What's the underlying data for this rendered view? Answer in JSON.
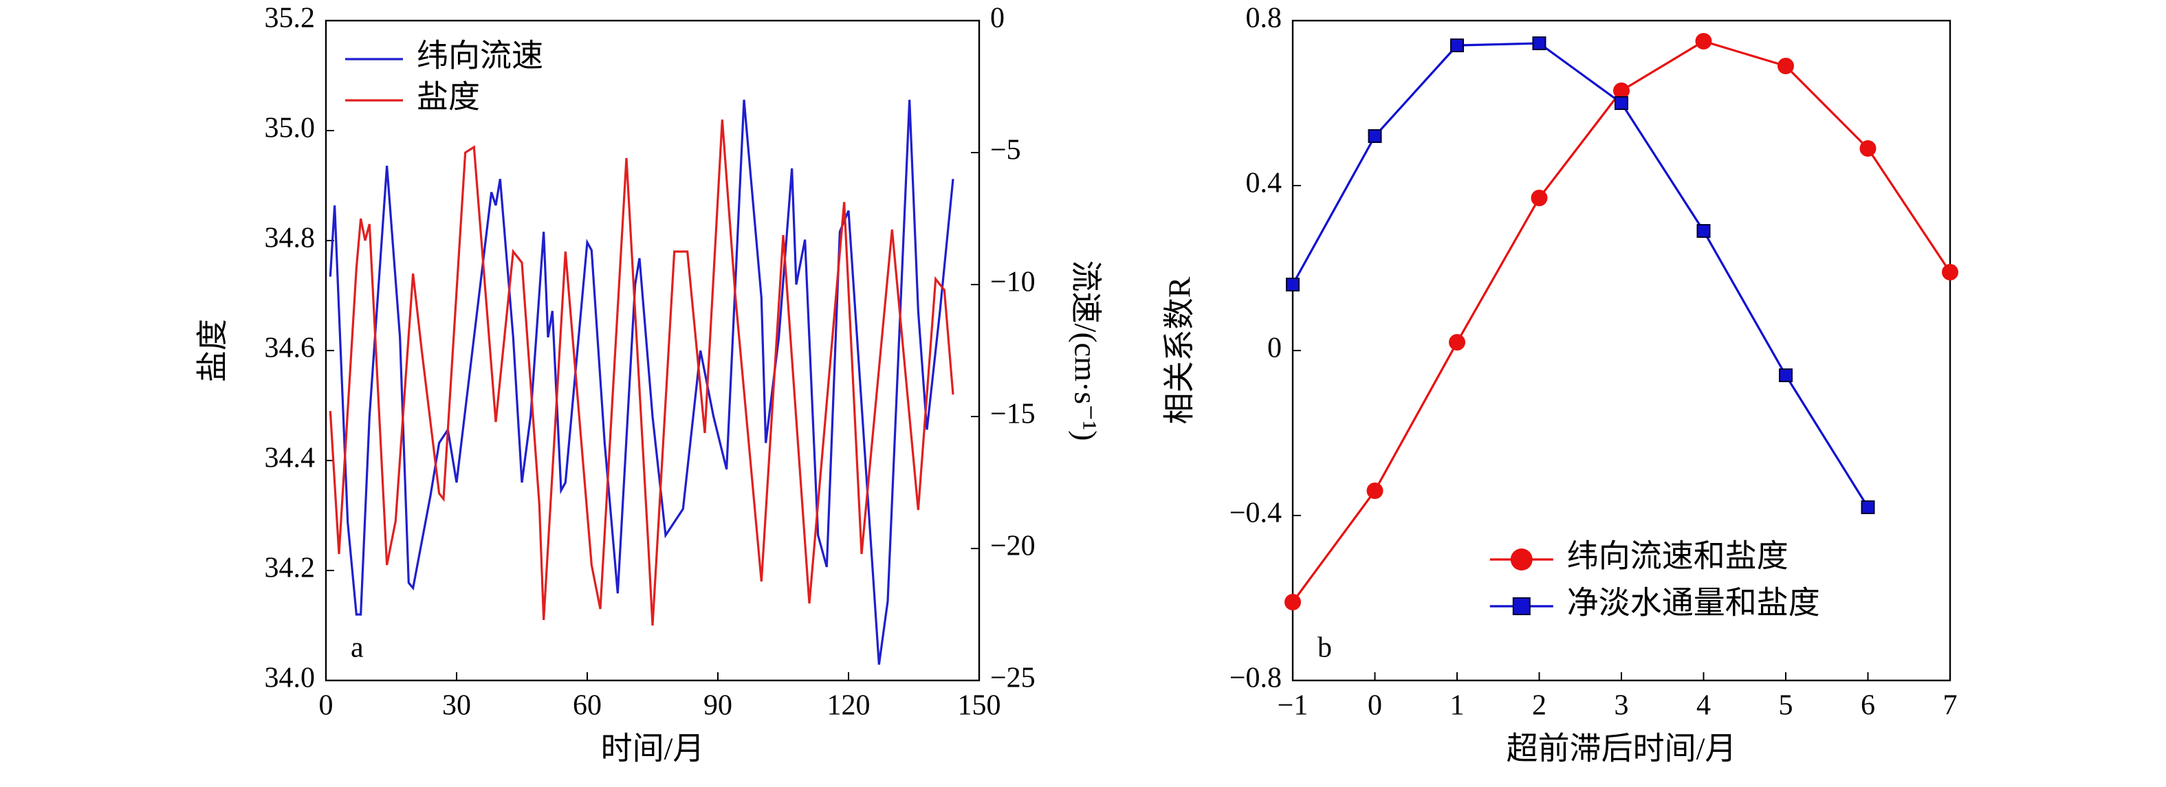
{
  "chart_data": [
    {
      "type": "line",
      "xlabel": "时间/月",
      "ylabel": "盐度",
      "y2label": "流速/(cm·s⁻¹)",
      "annotation": "a",
      "xlim": [
        0,
        150
      ],
      "xticks": [
        0,
        30,
        60,
        90,
        120,
        150
      ],
      "ylim": [
        34.0,
        35.2
      ],
      "yticks": [
        {
          "value": 34.0,
          "label": "34.0"
        },
        34.2,
        34.4,
        34.6,
        34.8,
        {
          "value": 35.0,
          "label": "35.0"
        },
        35.2
      ],
      "y2lim": [
        -25,
        0
      ],
      "y2ticks": [
        {
          "value": -25,
          "label": "−25"
        },
        {
          "value": -20,
          "label": "−20"
        },
        {
          "value": -15,
          "label": "−15"
        },
        {
          "value": -10,
          "label": "−10"
        },
        {
          "value": -5,
          "label": "−5"
        },
        0
      ],
      "legend": "upper left",
      "series": [
        {
          "name": "纬向流速",
          "color": "#1f1fcf",
          "axis": "y2",
          "x": [
            1,
            2,
            5,
            7,
            8,
            10,
            14,
            17,
            19,
            20,
            24,
            26,
            28,
            30,
            34,
            38,
            39,
            40,
            43,
            45,
            47,
            50,
            51,
            52,
            54,
            55,
            60,
            61,
            64,
            67,
            71,
            72,
            75,
            78,
            82,
            86,
            89,
            92,
            96,
            100,
            101,
            104,
            107,
            108,
            110,
            113,
            115,
            118,
            120,
            124,
            127,
            129,
            134,
            136,
            138,
            141,
            144
          ],
          "values": [
            -9.7,
            -7,
            -19,
            -22.5,
            -22.5,
            -15,
            -5.5,
            -12,
            -21.3,
            -21.5,
            -18,
            -16,
            -15.5,
            -17.5,
            -12,
            -6.5,
            -7,
            -6,
            -12,
            -17.5,
            -15,
            -8,
            -12,
            -11,
            -17.8,
            -17.5,
            -8.4,
            -8.7,
            -16,
            -21.7,
            -10,
            -9,
            -15,
            -19.5,
            -18.5,
            -12.5,
            -15,
            -17,
            -3,
            -10.5,
            -16,
            -12,
            -5.6,
            -10,
            -8.3,
            -19.5,
            -20.7,
            -8,
            -7.2,
            -17,
            -24.4,
            -22,
            -3,
            -11,
            -15.5,
            -11,
            -6
          ]
        },
        {
          "name": "盐度",
          "color": "#e02020",
          "x": [
            1,
            3,
            7,
            8,
            9,
            10,
            14,
            16,
            20,
            22,
            26,
            27,
            32,
            34,
            39,
            43,
            45,
            49,
            50,
            55,
            61,
            63,
            69,
            74,
            75,
            80,
            83,
            87,
            91,
            94,
            100,
            105,
            111,
            119,
            123,
            130,
            136,
            140,
            142,
            144
          ],
          "values": [
            34.49,
            34.23,
            34.75,
            34.84,
            34.8,
            34.83,
            34.21,
            34.29,
            34.74,
            34.6,
            34.34,
            34.33,
            34.96,
            34.97,
            34.47,
            34.78,
            34.76,
            34.32,
            34.11,
            34.78,
            34.21,
            34.13,
            34.95,
            34.25,
            34.1,
            34.78,
            34.78,
            34.45,
            35.02,
            34.7,
            34.18,
            34.81,
            34.14,
            34.87,
            34.23,
            34.82,
            34.31,
            34.73,
            34.71,
            34.52
          ]
        }
      ]
    },
    {
      "type": "line",
      "xlabel": "超前滞后时间/月",
      "ylabel": "相关系数R",
      "annotation": "b",
      "xlim": [
        -1,
        7
      ],
      "xticks": [
        {
          "value": -1,
          "label": "−1"
        },
        0,
        1,
        2,
        3,
        4,
        5,
        6,
        7
      ],
      "ylim": [
        -0.8,
        0.8
      ],
      "yticks": [
        {
          "value": -0.8,
          "label": "−0.8"
        },
        {
          "value": -0.4,
          "label": "−0.4"
        },
        0,
        0.4,
        0.8
      ],
      "legend": "lower center",
      "series": [
        {
          "name": "纬向流速和盐度",
          "color": "#e81010",
          "marker": "circle",
          "x": [
            -1,
            0,
            1,
            2,
            3,
            4,
            5,
            6,
            7
          ],
          "values": [
            -0.61,
            -0.34,
            0.02,
            0.37,
            0.63,
            0.75,
            0.69,
            0.49,
            0.19
          ]
        },
        {
          "name": "净淡水通量和盐度",
          "color": "#1010d0",
          "marker": "square",
          "x": [
            -1,
            0,
            1,
            2,
            3,
            4,
            5,
            6
          ],
          "values": [
            0.16,
            0.52,
            0.74,
            0.745,
            0.6,
            0.29,
            -0.06,
            -0.38
          ]
        }
      ]
    }
  ]
}
